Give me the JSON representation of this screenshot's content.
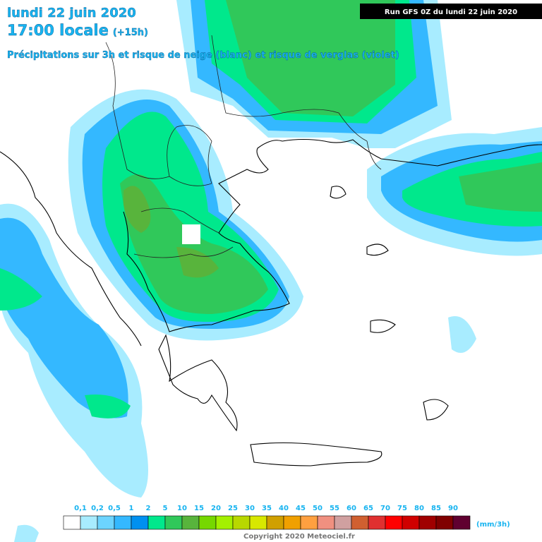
{
  "header": {
    "date": "lundi 22 juin 2020",
    "time": "17:00 locale",
    "lead": "(+15h)",
    "subtitle": "Précipitations sur 3h et risque de neige (blanc) et risque de verglas (violet)",
    "run": "Run GFS 0Z du lundi 22 juin 2020"
  },
  "legend": {
    "labels": [
      "0,1",
      "0,2",
      "0,5",
      "1",
      "2",
      "5",
      "10",
      "15",
      "20",
      "25",
      "30",
      "35",
      "40",
      "45",
      "50",
      "55",
      "60",
      "65",
      "70",
      "75",
      "80",
      "85",
      "90"
    ],
    "colors": [
      "#ffffff",
      "#a8ecff",
      "#6cd4ff",
      "#34b8ff",
      "#0090f0",
      "#00e88c",
      "#30c85a",
      "#58b43c",
      "#76d800",
      "#a4f000",
      "#b8d800",
      "#d8e800",
      "#d0a000",
      "#f0a000",
      "#ffa040",
      "#f09080",
      "#d0a0a0",
      "#d06030",
      "#e03030",
      "#ff0000",
      "#d00000",
      "#a00000",
      "#800000",
      "#600030"
    ],
    "extra_colors": [
      "#8050ff",
      "#ff60ff"
    ],
    "unit": "(mm/3h)"
  },
  "footer": {
    "copyright": "Copyright 2020 Meteociel.fr"
  }
}
